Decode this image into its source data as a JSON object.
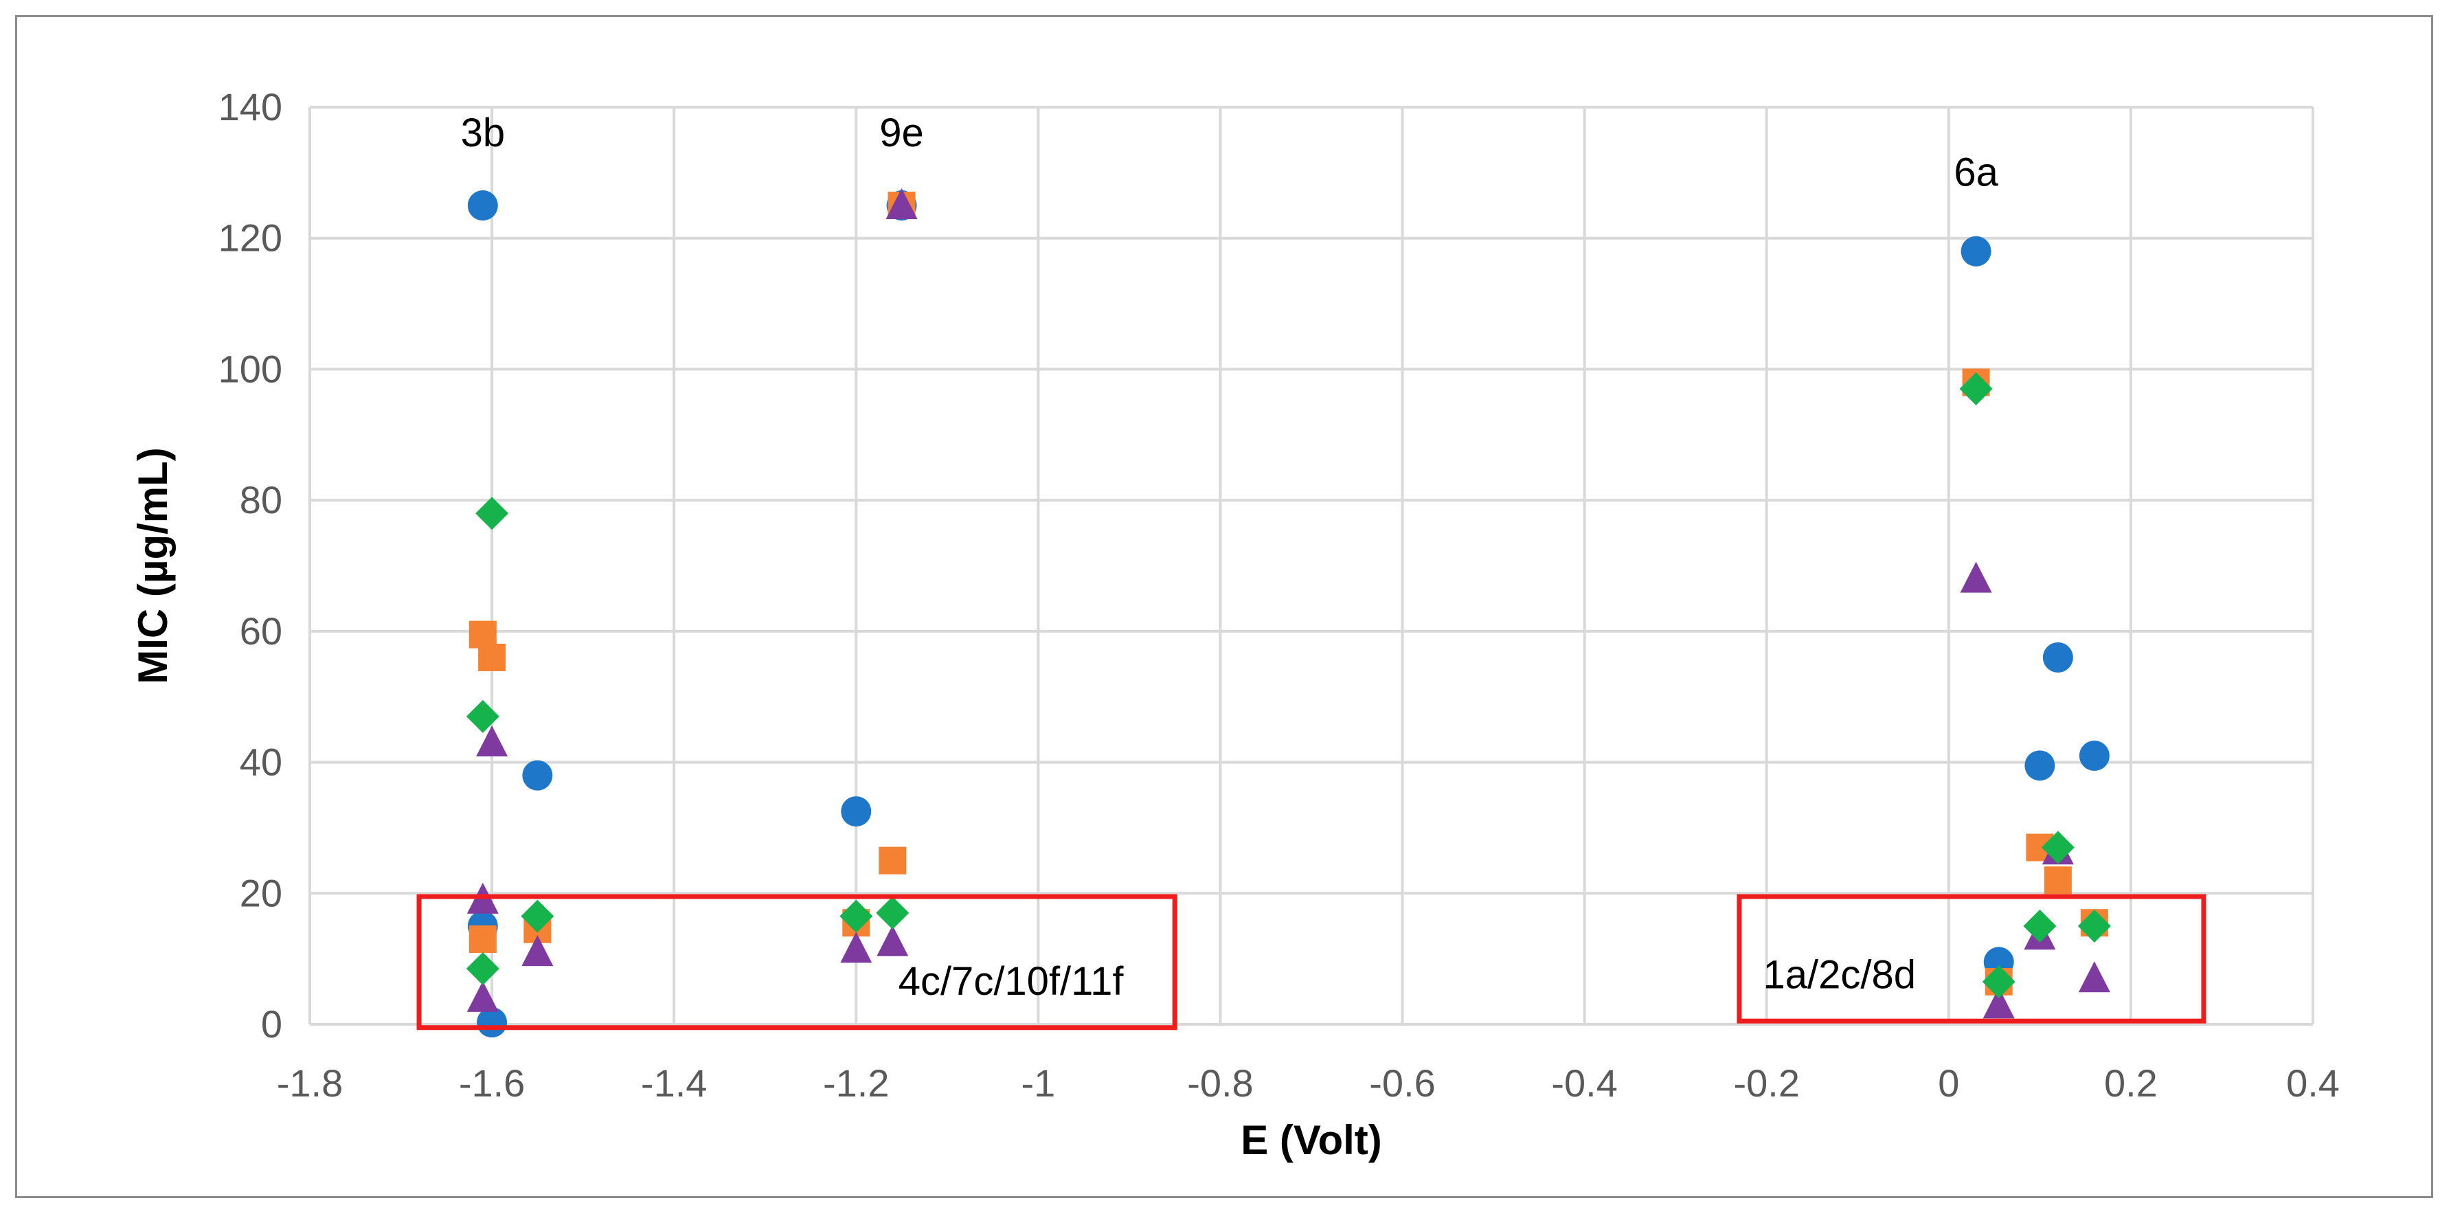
{
  "chart_data": {
    "type": "scatter",
    "title": "",
    "xlabel": "E (Volt)",
    "ylabel": "MIC (µg/mL)",
    "xlim": [
      -1.8,
      0.4
    ],
    "ylim": [
      0,
      140
    ],
    "x_ticks": [
      "-1.8",
      "-1.6",
      "-1.4",
      "-1.2",
      "-1",
      "-0.8",
      "-0.6",
      "-0.4",
      "-0.2",
      "0",
      "0.2",
      "0.4"
    ],
    "y_ticks": [
      "0",
      "20",
      "40",
      "60",
      "80",
      "100",
      "120",
      "140"
    ],
    "grid": true,
    "legend": "none",
    "series": [
      {
        "marker": "circle",
        "color": "#1f77c9",
        "points": [
          [
            -1.61,
            125
          ],
          [
            -1.61,
            15
          ],
          [
            -1.6,
            0.3
          ],
          [
            -1.55,
            38
          ],
          [
            -1.2,
            32.5
          ],
          [
            -1.15,
            125
          ],
          [
            0.03,
            118
          ],
          [
            0.055,
            9.5
          ],
          [
            0.1,
            39.5
          ],
          [
            0.12,
            56
          ],
          [
            0.16,
            41
          ]
        ]
      },
      {
        "marker": "square",
        "color": "#f58232",
        "points": [
          [
            -1.61,
            59.5
          ],
          [
            -1.6,
            56
          ],
          [
            -1.61,
            13
          ],
          [
            -1.55,
            14.5
          ],
          [
            -1.2,
            15.5
          ],
          [
            -1.16,
            25
          ],
          [
            -1.15,
            125
          ],
          [
            0.03,
            98
          ],
          [
            0.055,
            6.5
          ],
          [
            0.1,
            27
          ],
          [
            0.12,
            22
          ],
          [
            0.16,
            15.5
          ]
        ]
      },
      {
        "marker": "triangle",
        "color": "#7e3a9e",
        "points": [
          [
            -1.6,
            43
          ],
          [
            -1.61,
            19
          ],
          [
            -1.61,
            4
          ],
          [
            -1.55,
            11
          ],
          [
            -1.2,
            11.5
          ],
          [
            -1.16,
            12.5
          ],
          [
            -1.15,
            125
          ],
          [
            0.03,
            68
          ],
          [
            0.055,
            3
          ],
          [
            0.1,
            13.5
          ],
          [
            0.12,
            26.5
          ],
          [
            0.16,
            7
          ]
        ]
      },
      {
        "marker": "diamond",
        "color": "#16b24b",
        "points": [
          [
            -1.6,
            78
          ],
          [
            -1.61,
            47
          ],
          [
            -1.61,
            8.5
          ],
          [
            -1.55,
            16.5
          ],
          [
            -1.2,
            16.5
          ],
          [
            -1.16,
            17
          ],
          [
            0.03,
            97
          ],
          [
            0.055,
            6.5
          ],
          [
            0.1,
            15
          ],
          [
            0.12,
            27
          ],
          [
            0.16,
            15
          ]
        ]
      }
    ],
    "annotations": [
      {
        "text": "3b",
        "x": -1.61,
        "y": 134
      },
      {
        "text": "9e",
        "x": -1.15,
        "y": 134
      },
      {
        "text": "6a",
        "x": 0.03,
        "y": 128
      },
      {
        "text": "4c/7c/10f/11f",
        "x": -1.03,
        "y": 4.5
      },
      {
        "text": "1a/2c/8d",
        "x": -0.12,
        "y": 5.5
      }
    ],
    "highlight_boxes": [
      {
        "x0": -1.68,
        "x1": -0.85,
        "y0": -0.5,
        "y1": 19.5,
        "color": "#ee1c1c"
      },
      {
        "x0": -0.23,
        "x1": 0.28,
        "y0": 0.5,
        "y1": 19.5,
        "color": "#ee1c1c"
      }
    ]
  }
}
